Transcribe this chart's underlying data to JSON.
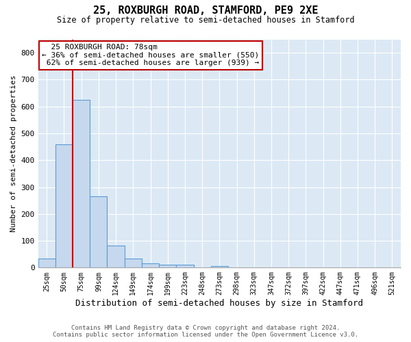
{
  "title": "25, ROXBURGH ROAD, STAMFORD, PE9 2XE",
  "subtitle": "Size of property relative to semi-detached houses in Stamford",
  "xlabel": "Distribution of semi-detached houses by size in Stamford",
  "ylabel": "Number of semi-detached properties",
  "footnote1": "Contains HM Land Registry data © Crown copyright and database right 2024.",
  "footnote2": "Contains public sector information licensed under the Open Government Licence v3.0.",
  "annotation_line1": "25 ROXBURGH ROAD: 78sqm",
  "annotation_line2": "← 36% of semi-detached houses are smaller (550)",
  "annotation_line3": "62% of semi-detached houses are larger (939) →",
  "bar_labels": [
    "25sqm",
    "50sqm",
    "75sqm",
    "99sqm",
    "124sqm",
    "149sqm",
    "174sqm",
    "199sqm",
    "223sqm",
    "248sqm",
    "273sqm",
    "298sqm",
    "323sqm",
    "347sqm",
    "372sqm",
    "397sqm",
    "422sqm",
    "447sqm",
    "471sqm",
    "496sqm",
    "521sqm"
  ],
  "bar_values": [
    35,
    460,
    625,
    265,
    82,
    35,
    15,
    10,
    10,
    0,
    6,
    0,
    0,
    0,
    0,
    0,
    0,
    0,
    0,
    0,
    0
  ],
  "bar_color": "#c5d8ed",
  "bar_edge_color": "#5b9bd5",
  "vline_color": "#c00000",
  "annotation_box_color": "#c00000",
  "ylim": [
    0,
    850
  ],
  "yticks": [
    0,
    100,
    200,
    300,
    400,
    500,
    600,
    700,
    800
  ],
  "grid_color": "#d0d8e8",
  "background_color": "#dce9f5",
  "vline_x_index": 2.0
}
